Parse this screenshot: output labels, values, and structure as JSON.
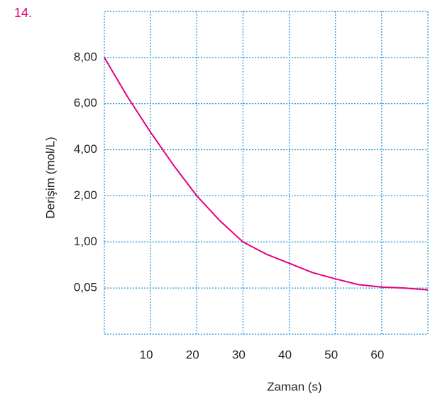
{
  "chart_data": {
    "type": "line",
    "label": "14.",
    "xlabel": "Zaman (s)",
    "ylabel": "Derişim (mol/L)",
    "x": [
      0,
      5,
      10,
      15,
      20,
      25,
      30,
      35,
      40,
      45,
      50,
      55,
      60,
      65,
      70
    ],
    "series": [
      {
        "color": "#e6007e",
        "values": [
          8,
          6.3,
          4.76,
          3.32,
          2,
          1.46,
          1,
          0.75,
          0.56,
          0.37,
          0.24,
          0.12,
          0.07,
          0.05,
          0.048
        ]
      }
    ],
    "xlim": [
      0,
      70
    ],
    "xticks": [
      10,
      20,
      30,
      40,
      50,
      60
    ],
    "ylim": [
      0,
      10
    ],
    "yticks": [
      {
        "value": 0.05,
        "label": "0,05"
      },
      {
        "value": 1,
        "label": "1,00"
      },
      {
        "value": 2,
        "label": "2,00"
      },
      {
        "value": 4,
        "label": "4,00"
      },
      {
        "value": 6,
        "label": "6,00"
      },
      {
        "value": 8,
        "label": "8,00"
      }
    ],
    "grid": true
  }
}
